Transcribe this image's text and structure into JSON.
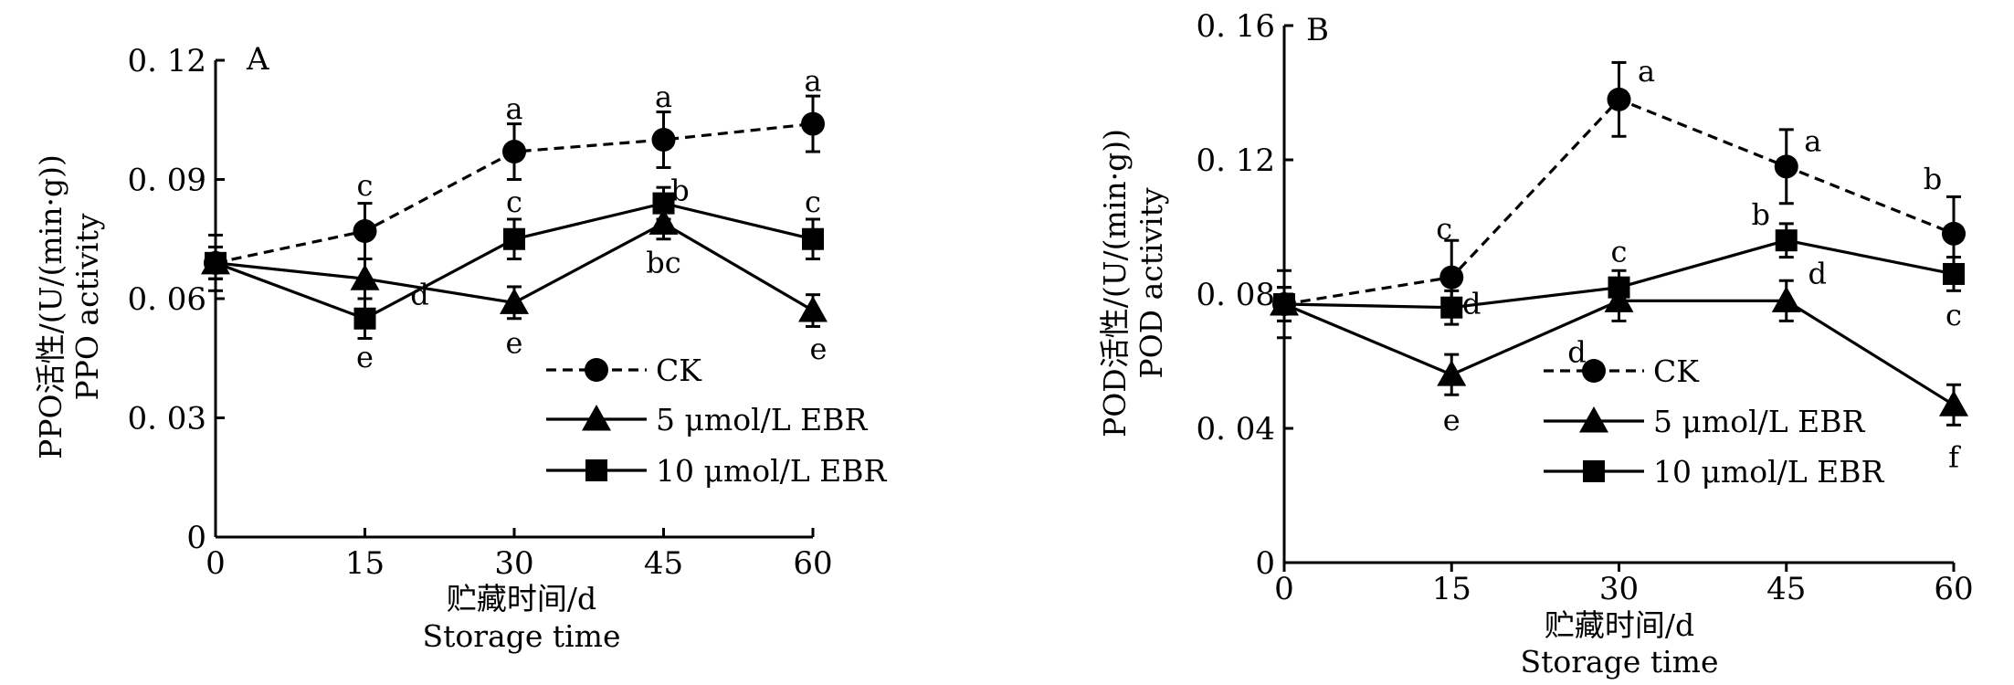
{
  "chart_data": [
    {
      "type": "line",
      "panel_label": "A",
      "x": [
        0,
        15,
        30,
        45,
        60
      ],
      "xlim": [
        0,
        60
      ],
      "ylim": [
        0,
        0.12
      ],
      "x_ticks": [
        0,
        15,
        30,
        45,
        60
      ],
      "x_tick_labels": [
        "0",
        "15",
        "30",
        "45",
        "60"
      ],
      "y_ticks": [
        0,
        0.03,
        0.06,
        0.09,
        0.12
      ],
      "y_tick_labels": [
        "0",
        "0. 03",
        "0. 06",
        "0. 09",
        "0. 12"
      ],
      "xlabel": "贮藏时间/d",
      "xlabel_en": "Storage time",
      "ylabel": "PPO活性/(U/(min·g))",
      "ylabel_en": "PPO activity",
      "legend_position": "lower-right",
      "series": [
        {
          "name": "CK",
          "marker": "circle",
          "style": "dashed",
          "values": [
            0.069,
            0.077,
            0.097,
            0.1,
            0.104
          ],
          "errors": [
            0.007,
            0.007,
            0.007,
            0.007,
            0.007
          ],
          "letters": [
            "",
            "c",
            "a",
            "a",
            "a"
          ]
        },
        {
          "name": "5  μmol/L EBR",
          "marker": "triangle",
          "style": "solid",
          "values": [
            0.069,
            0.065,
            0.059,
            0.079,
            0.057
          ],
          "errors": [
            0.004,
            0.005,
            0.004,
            0.004,
            0.004
          ],
          "letters": [
            "",
            "d",
            "e",
            "bc",
            "e"
          ]
        },
        {
          "name": "10  μmol/L EBR",
          "marker": "square",
          "style": "solid",
          "values": [
            0.069,
            0.055,
            0.075,
            0.084,
            0.075
          ],
          "errors": [
            0.004,
            0.005,
            0.005,
            0.004,
            0.005
          ],
          "letters": [
            "",
            "e",
            "c",
            "b",
            "c"
          ]
        }
      ]
    },
    {
      "type": "line",
      "panel_label": "B",
      "x": [
        0,
        15,
        30,
        45,
        60
      ],
      "xlim": [
        0,
        60
      ],
      "ylim": [
        0,
        0.16
      ],
      "x_ticks": [
        0,
        15,
        30,
        45,
        60
      ],
      "x_tick_labels": [
        "0",
        "15",
        "30",
        "45",
        "60"
      ],
      "y_ticks": [
        0,
        0.04,
        0.08,
        0.12,
        0.16
      ],
      "y_tick_labels": [
        "0",
        "0. 04",
        "0. 08",
        "0. 12",
        "0. 16"
      ],
      "xlabel": "贮藏时间/d",
      "xlabel_en": "Storage time",
      "ylabel": "POD活性/(U/(min·g))",
      "ylabel_en": "POD activity",
      "legend_position": "lower-right",
      "series": [
        {
          "name": "CK",
          "marker": "circle",
          "style": "dashed",
          "values": [
            0.077,
            0.085,
            0.138,
            0.118,
            0.098
          ],
          "errors": [
            0.01,
            0.011,
            0.011,
            0.011,
            0.011
          ],
          "letters": [
            "",
            "c",
            "a",
            "a",
            "b"
          ]
        },
        {
          "name": "5  μmol/L EBR",
          "marker": "triangle",
          "style": "solid",
          "values": [
            0.077,
            0.056,
            0.078,
            0.078,
            0.047
          ],
          "errors": [
            0.005,
            0.006,
            0.006,
            0.006,
            0.006
          ],
          "letters": [
            "",
            "e",
            "d",
            "d",
            "f"
          ]
        },
        {
          "name": "10  μmol/L EBR",
          "marker": "square",
          "style": "solid",
          "values": [
            0.077,
            0.076,
            0.082,
            0.096,
            0.086
          ],
          "errors": [
            0.005,
            0.005,
            0.005,
            0.005,
            0.005
          ],
          "letters": [
            "",
            "d",
            "c",
            "b",
            "c"
          ]
        }
      ]
    }
  ]
}
